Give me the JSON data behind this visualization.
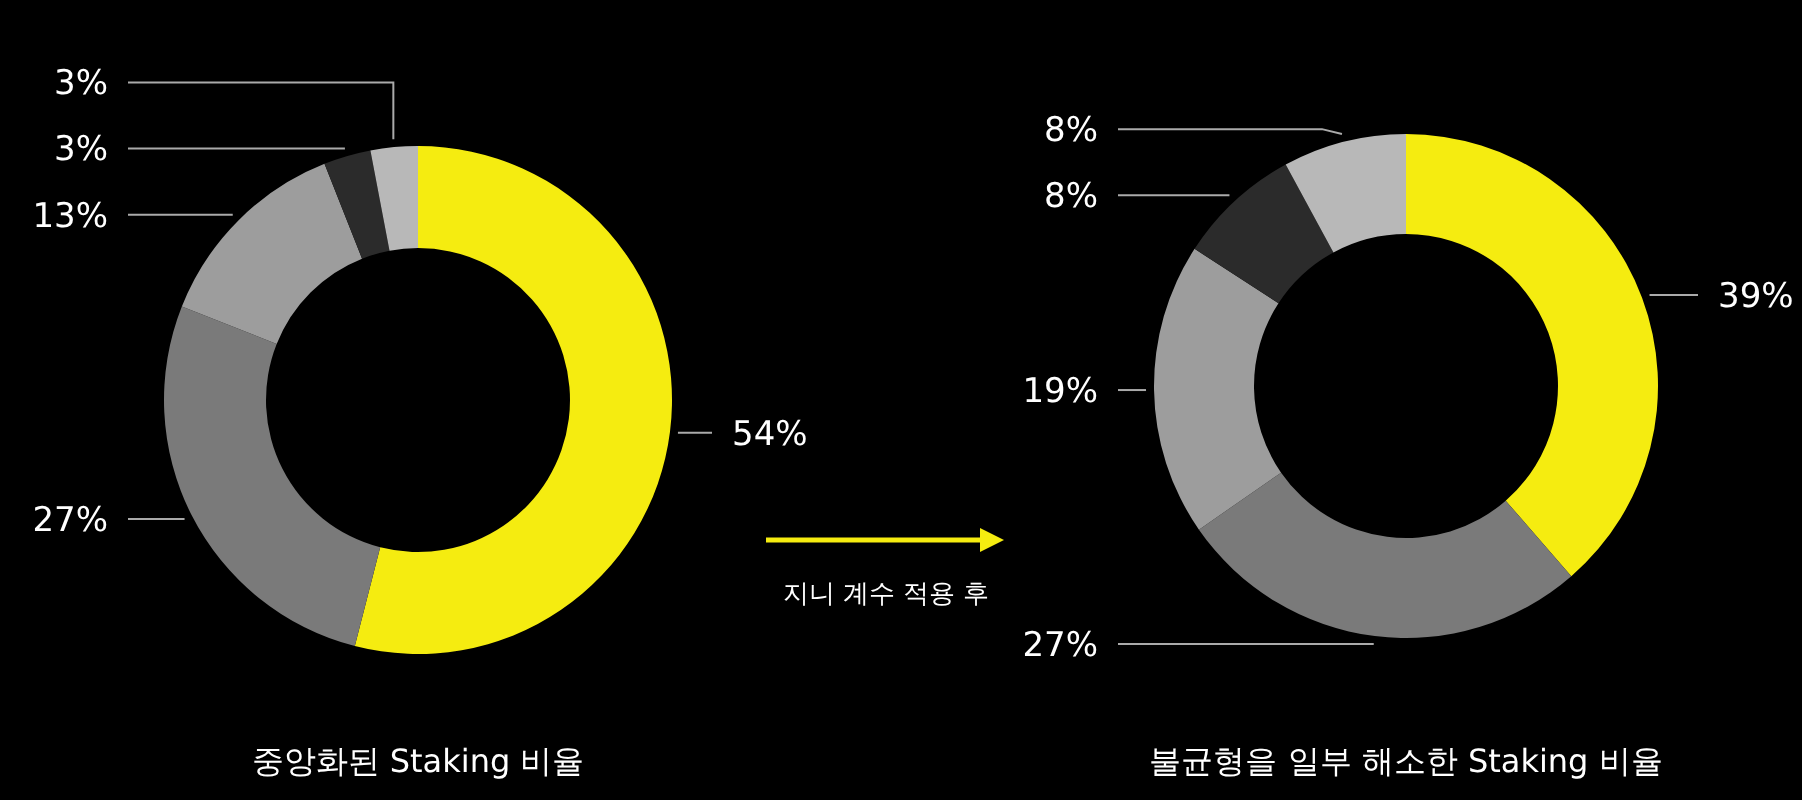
{
  "chart_data": [
    {
      "type": "donut",
      "title": "중앙화된 Staking 비율",
      "categories": [
        null,
        null,
        null,
        null,
        null
      ],
      "values": [
        54,
        27,
        13,
        3,
        3
      ],
      "colors": [
        "#f5ec10",
        "#7a7a7a",
        "#9d9d9d",
        "#2b2b2b",
        "#b8b8b8"
      ],
      "value_labels": [
        "54%",
        "27%",
        "13%",
        "3%",
        "3%"
      ]
    },
    {
      "type": "donut",
      "title": "불균형을 일부 해소한 Staking 비율",
      "categories": [
        null,
        null,
        null,
        null,
        null
      ],
      "values": [
        39,
        27,
        19,
        8,
        8
      ],
      "colors": [
        "#f5ec10",
        "#7a7a7a",
        "#9d9d9d",
        "#2b2b2b",
        "#b8b8b8"
      ],
      "value_labels": [
        "39%",
        "27%",
        "19%",
        "8%",
        "8%"
      ],
      "annotations": [
        "지니 계수 적용 후"
      ]
    }
  ]
}
